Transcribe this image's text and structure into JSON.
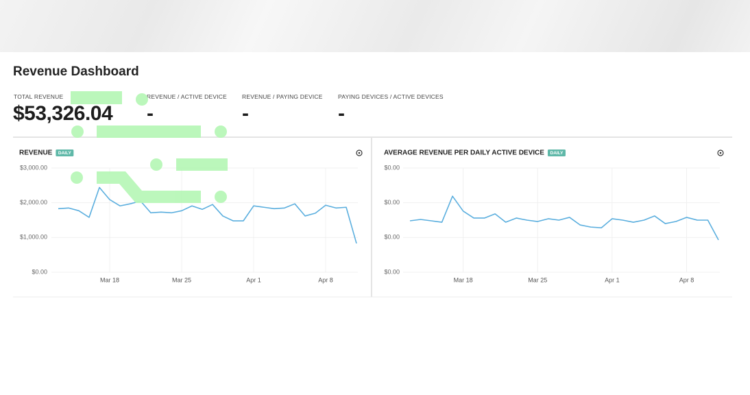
{
  "header": {
    "title": "Revenue Dashboard"
  },
  "metrics": [
    {
      "label": "TOTAL REVENUE",
      "value": "$53,326.04"
    },
    {
      "label": "REVENUE / ACTIVE DEVICE",
      "value": "-"
    },
    {
      "label": "REVENUE / PAYING DEVICE",
      "value": "-"
    },
    {
      "label": "PAYING DEVICES / ACTIVE DEVICES",
      "value": "-"
    }
  ],
  "chart_data": [
    {
      "type": "line",
      "title": "REVENUE",
      "badge": "DAILY",
      "color": "#5aaede",
      "grid": true,
      "categories": [
        null,
        null,
        null,
        null,
        null,
        "Mar 18",
        null,
        null,
        null,
        null,
        null,
        null,
        "Mar 25",
        null,
        null,
        null,
        null,
        null,
        null,
        "Apr 1",
        null,
        null,
        null,
        null,
        null,
        null,
        "Apr 8",
        null,
        null,
        null
      ],
      "values": [
        1830,
        1850,
        1770,
        1580,
        2440,
        2090,
        1910,
        1970,
        2050,
        1710,
        1730,
        1710,
        1770,
        1910,
        1810,
        1950,
        1620,
        1480,
        1480,
        1910,
        1870,
        1830,
        1850,
        1970,
        1620,
        1700,
        1930,
        1850,
        1870,
        830
      ],
      "ylim": [
        0,
        3000
      ],
      "yticks": [
        {
          "value": 0,
          "label": "$0.00"
        },
        {
          "value": 1000,
          "label": "$1,000.00"
        },
        {
          "value": 2000,
          "label": "$2,000.00"
        },
        {
          "value": 3000,
          "label": "$3,000.00"
        }
      ]
    },
    {
      "type": "line",
      "title": "AVERAGE REVENUE PER DAILY ACTIVE DEVICE",
      "badge": "DAILY",
      "color": "#5aaede",
      "grid": true,
      "categories": [
        null,
        null,
        null,
        null,
        null,
        "Mar 18",
        null,
        null,
        null,
        null,
        null,
        null,
        "Mar 25",
        null,
        null,
        null,
        null,
        null,
        null,
        "Apr 1",
        null,
        null,
        null,
        null,
        null,
        null,
        "Apr 8",
        null,
        null,
        null
      ],
      "values": [
        0.00148,
        0.00152,
        0.00148,
        0.00144,
        0.00219,
        0.00176,
        0.00156,
        0.00156,
        0.00168,
        0.00144,
        0.00156,
        0.0015,
        0.00146,
        0.00154,
        0.0015,
        0.00158,
        0.00136,
        0.0013,
        0.00128,
        0.00154,
        0.0015,
        0.00144,
        0.0015,
        0.00162,
        0.0014,
        0.00146,
        0.00158,
        0.0015,
        0.0015,
        0.00093
      ],
      "ylim": [
        0,
        0.003
      ],
      "yticks": [
        {
          "value": 0,
          "label": "$0.00"
        },
        {
          "value": 0.001,
          "label": "$0.00"
        },
        {
          "value": 0.002,
          "label": "$0.00"
        },
        {
          "value": 0.003,
          "label": "$0.00"
        }
      ]
    }
  ]
}
